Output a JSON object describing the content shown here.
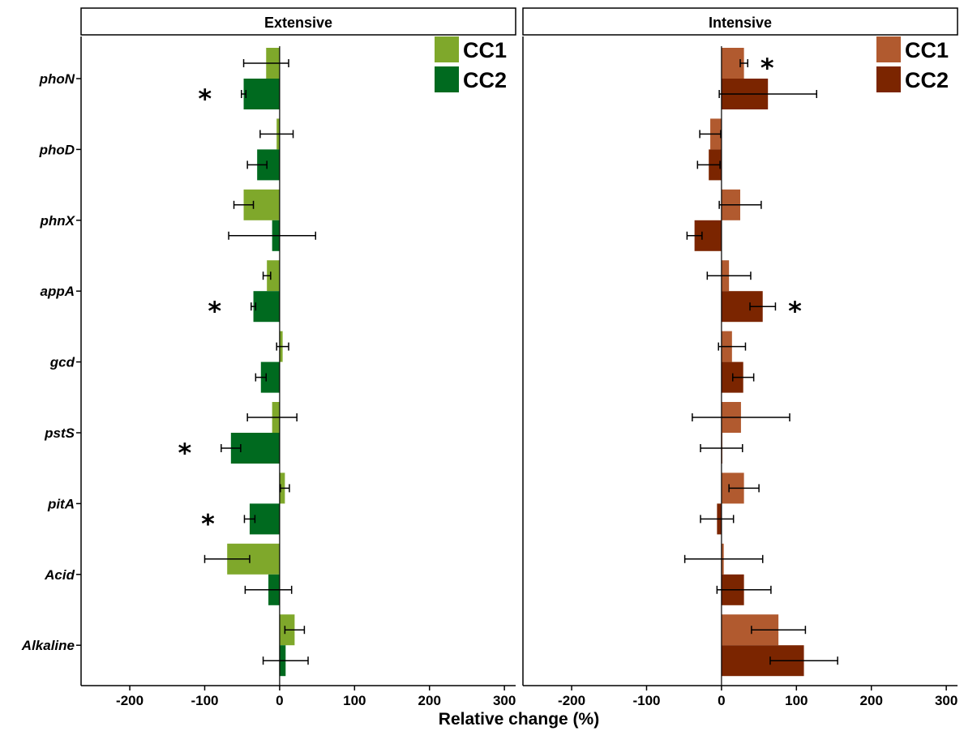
{
  "chart_data": {
    "type": "bar",
    "orientation": "horizontal",
    "categories": [
      "phoN",
      "phoD",
      "phnX",
      "appA",
      "gcd",
      "pstS",
      "pitA",
      "Acid",
      "Alkaline"
    ],
    "xlabel": "Relative change (%)",
    "xticks": [
      "-200",
      "-100",
      "0",
      "100",
      "200",
      "300"
    ],
    "xlim": [
      -265,
      315
    ],
    "grid": false,
    "panels": [
      {
        "title": "Extensive",
        "legend_position": "top-right",
        "series": [
          {
            "name": "CC1",
            "color": "#7fa82b",
            "values": [
              -18,
              -4,
              -48,
              -17,
              4,
              -10,
              7,
              -70,
              20
            ],
            "error": [
              30,
              22,
              13,
              5,
              8,
              33,
              6,
              30,
              13
            ],
            "significant": [
              false,
              false,
              false,
              false,
              false,
              false,
              false,
              false,
              false
            ]
          },
          {
            "name": "CC2",
            "color": "#006a1f",
            "values": [
              -48,
              -30,
              -10,
              -35,
              -25,
              -65,
              -40,
              -15,
              8
            ],
            "error": [
              3,
              13,
              58,
              3,
              7,
              13,
              7,
              31,
              30
            ],
            "significant": [
              true,
              false,
              false,
              true,
              false,
              true,
              true,
              false,
              false
            ]
          }
        ]
      },
      {
        "title": "Intensive",
        "legend_position": "top-right",
        "series": [
          {
            "name": "CC1",
            "color": "#b15a2f",
            "values": [
              30,
              -15,
              25,
              10,
              14,
              26,
              30,
              3,
              76
            ],
            "error": [
              5,
              14,
              28,
              29,
              18,
              65,
              20,
              52,
              36
            ],
            "significant": [
              true,
              false,
              false,
              false,
              false,
              false,
              false,
              false,
              false
            ]
          },
          {
            "name": "CC2",
            "color": "#7b2500",
            "values": [
              62,
              -17,
              -36,
              55,
              29,
              0,
              -6,
              30,
              110
            ],
            "error": [
              65,
              15,
              10,
              17,
              14,
              28,
              22,
              36,
              45
            ],
            "significant": [
              false,
              false,
              false,
              true,
              false,
              false,
              false,
              false,
              false
            ]
          }
        ]
      }
    ]
  }
}
